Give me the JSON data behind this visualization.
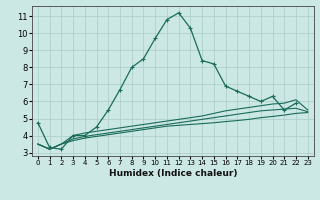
{
  "title": "",
  "xlabel": "Humidex (Indice chaleur)",
  "bg_color": "#cce8e4",
  "grid_color": "#aaccca",
  "line_color": "#1a6b5a",
  "xlim": [
    -0.5,
    23.5
  ],
  "ylim": [
    2.8,
    11.6
  ],
  "xticks": [
    0,
    1,
    2,
    3,
    4,
    5,
    6,
    7,
    8,
    9,
    10,
    11,
    12,
    13,
    14,
    15,
    16,
    17,
    18,
    19,
    20,
    21,
    22,
    23
  ],
  "yticks": [
    3,
    4,
    5,
    6,
    7,
    8,
    9,
    10,
    11
  ],
  "curve1_x": [
    0,
    1,
    2,
    3,
    4,
    5,
    6,
    7,
    8,
    9,
    10,
    11,
    12,
    13,
    14,
    15,
    16,
    17,
    18,
    19,
    20,
    21,
    22
  ],
  "curve1_y": [
    4.75,
    3.3,
    3.2,
    4.0,
    4.0,
    4.5,
    5.5,
    6.7,
    8.0,
    8.5,
    9.7,
    10.8,
    11.2,
    10.3,
    8.4,
    8.2,
    6.9,
    6.6,
    6.3,
    6.0,
    6.3,
    5.5,
    5.9
  ],
  "curve2_x": [
    0,
    1,
    2,
    3,
    4,
    5,
    6,
    7,
    8,
    9,
    10,
    11,
    12,
    13,
    14,
    15,
    16,
    17,
    18,
    19,
    20,
    21,
    22,
    23
  ],
  "curve2_y": [
    3.5,
    3.2,
    3.5,
    4.0,
    4.15,
    4.25,
    4.35,
    4.45,
    4.55,
    4.65,
    4.75,
    4.85,
    4.95,
    5.05,
    5.15,
    5.3,
    5.45,
    5.55,
    5.65,
    5.75,
    5.85,
    5.9,
    6.1,
    5.5
  ],
  "curve3_x": [
    0,
    1,
    2,
    3,
    4,
    5,
    6,
    7,
    8,
    9,
    10,
    11,
    12,
    13,
    14,
    15,
    16,
    17,
    18,
    19,
    20,
    21,
    22,
    23
  ],
  "curve3_y": [
    3.5,
    3.2,
    3.5,
    3.8,
    3.95,
    4.05,
    4.15,
    4.25,
    4.35,
    4.45,
    4.55,
    4.65,
    4.75,
    4.85,
    4.95,
    5.05,
    5.15,
    5.25,
    5.35,
    5.45,
    5.5,
    5.55,
    5.6,
    5.4
  ],
  "curve4_x": [
    0,
    1,
    2,
    3,
    4,
    5,
    6,
    7,
    8,
    9,
    10,
    11,
    12,
    13,
    14,
    15,
    16,
    17,
    18,
    19,
    20,
    21,
    22,
    23
  ],
  "curve4_y": [
    3.5,
    3.2,
    3.5,
    3.7,
    3.85,
    3.95,
    4.05,
    4.15,
    4.25,
    4.35,
    4.45,
    4.55,
    4.6,
    4.65,
    4.7,
    4.75,
    4.82,
    4.88,
    4.95,
    5.05,
    5.12,
    5.2,
    5.3,
    5.35
  ]
}
